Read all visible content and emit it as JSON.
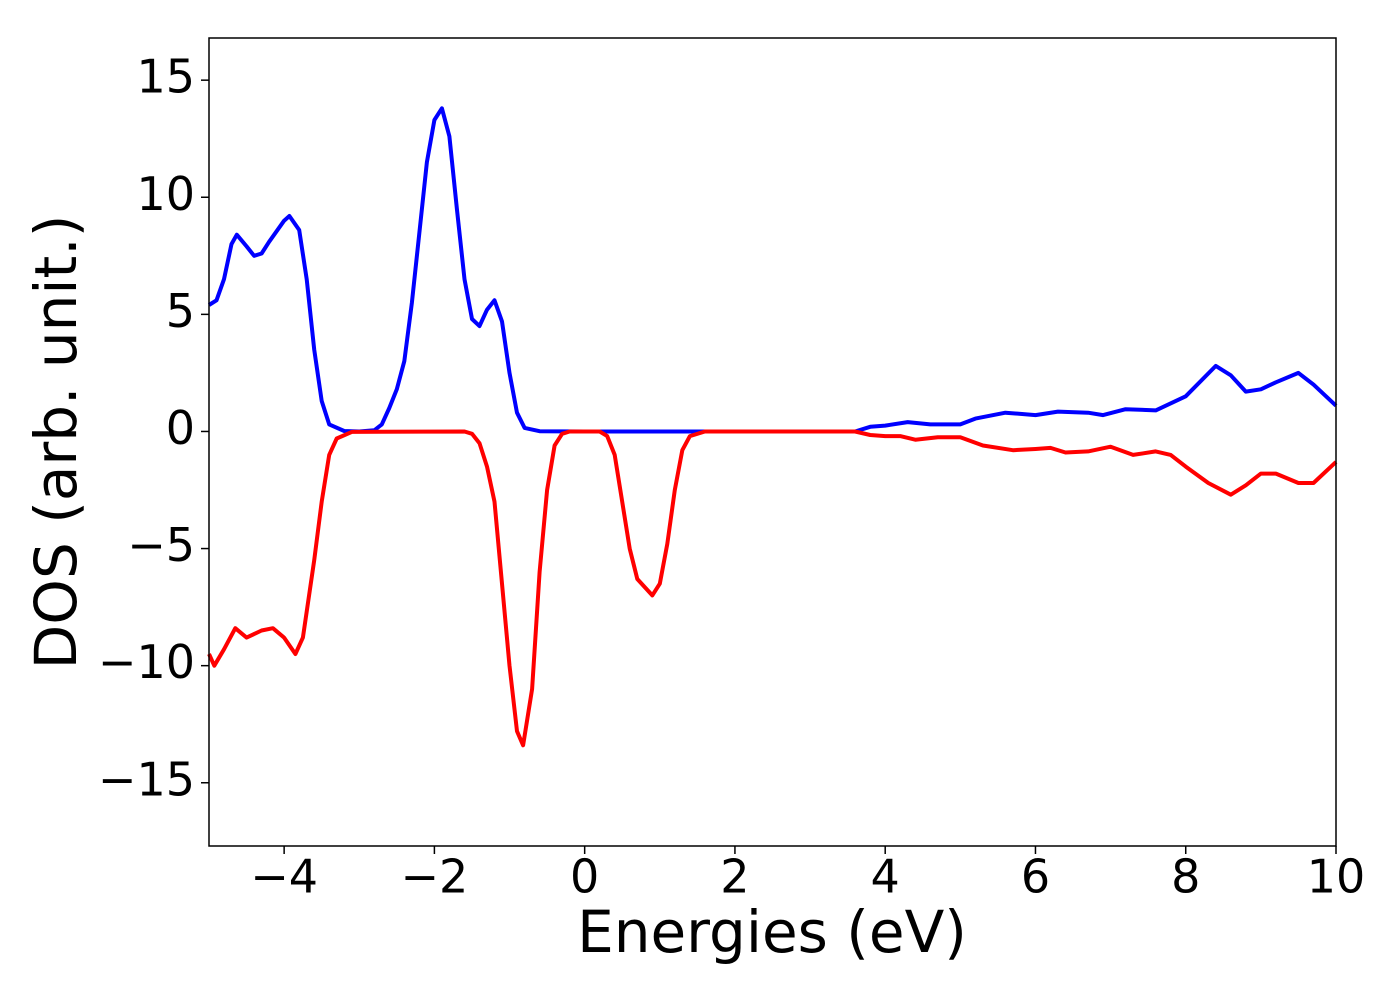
{
  "chart_data": {
    "type": "line",
    "xlabel": "Energies (eV)",
    "ylabel": "DOS (arb. unit.)",
    "xlim": [
      -5,
      10
    ],
    "ylim": [
      -17.7,
      16.8
    ],
    "xticks": [
      {
        "value": -4,
        "label": "−4"
      },
      {
        "value": -2,
        "label": "−2"
      },
      0,
      2,
      4,
      6,
      8,
      10
    ],
    "yticks": [
      {
        "value": -15,
        "label": "−15"
      },
      {
        "value": -10,
        "label": "−10"
      },
      {
        "value": -5,
        "label": "−5"
      },
      0,
      5,
      10,
      15
    ],
    "series": [
      {
        "color": "#0000ff",
        "x": [
          -5,
          -4.9,
          -4.8,
          -4.7,
          -4.63,
          -4.5,
          -4.4,
          -4.3,
          -4.2,
          -4.0,
          -3.93,
          -3.8,
          -3.7,
          -3.6,
          -3.5,
          -3.4,
          -3.2,
          -3.0,
          -2.8,
          -2.7,
          -2.6,
          -2.5,
          -2.4,
          -2.3,
          -2.2,
          -2.1,
          -2.0,
          -1.9,
          -1.8,
          -1.7,
          -1.6,
          -1.5,
          -1.4,
          -1.3,
          -1.2,
          -1.1,
          -1.0,
          -0.9,
          -0.8,
          -0.6,
          0,
          3.6,
          3.8,
          4.0,
          4.3,
          4.6,
          5.0,
          5.2,
          5.6,
          6.0,
          6.3,
          6.7,
          6.9,
          7.2,
          7.6,
          8.0,
          8.4,
          8.6,
          8.8,
          9.0,
          9.2,
          9.5,
          9.7,
          10
        ],
        "values": [
          5.4,
          5.6,
          6.5,
          8.0,
          8.4,
          7.9,
          7.5,
          7.6,
          8.1,
          9.0,
          9.2,
          8.6,
          6.5,
          3.5,
          1.3,
          0.3,
          0.02,
          0,
          0.05,
          0.3,
          1.0,
          1.8,
          3.0,
          5.5,
          8.5,
          11.5,
          13.3,
          13.8,
          12.6,
          9.5,
          6.5,
          4.8,
          4.5,
          5.2,
          5.6,
          4.7,
          2.5,
          0.8,
          0.15,
          0.01,
          0,
          0,
          0.2,
          0.25,
          0.4,
          0.3,
          0.3,
          0.55,
          0.8,
          0.7,
          0.85,
          0.8,
          0.7,
          0.95,
          0.9,
          1.5,
          2.8,
          2.4,
          1.7,
          1.8,
          2.1,
          2.5,
          2.0,
          1.1
        ]
      },
      {
        "color": "#ff0000",
        "x": [
          -5,
          -4.93,
          -4.8,
          -4.65,
          -4.5,
          -4.3,
          -4.15,
          -4.0,
          -3.85,
          -3.75,
          -3.6,
          -3.5,
          -3.4,
          -3.3,
          -3.1,
          -1.6,
          -1.5,
          -1.4,
          -1.3,
          -1.2,
          -1.1,
          -1.0,
          -0.9,
          -0.82,
          -0.7,
          -0.6,
          -0.5,
          -0.4,
          -0.3,
          -0.2,
          0.2,
          0.3,
          0.4,
          0.5,
          0.6,
          0.7,
          0.9,
          1.0,
          1.1,
          1.2,
          1.3,
          1.4,
          1.6,
          3.6,
          3.8,
          4.0,
          4.2,
          4.4,
          4.7,
          5.0,
          5.3,
          5.7,
          6.0,
          6.2,
          6.4,
          6.7,
          7.0,
          7.3,
          7.6,
          7.8,
          8.0,
          8.3,
          8.6,
          8.8,
          9.0,
          9.2,
          9.5,
          9.7,
          10
        ],
        "values": [
          -9.5,
          -10.0,
          -9.3,
          -8.4,
          -8.8,
          -8.5,
          -8.4,
          -8.8,
          -9.5,
          -8.8,
          -5.5,
          -3.0,
          -1.0,
          -0.3,
          -0.02,
          0,
          -0.1,
          -0.5,
          -1.5,
          -3.0,
          -6.5,
          -10,
          -12.8,
          -13.4,
          -11,
          -6,
          -2.5,
          -0.6,
          -0.1,
          0,
          0,
          -0.2,
          -1.0,
          -3,
          -5,
          -6.3,
          -7.0,
          -6.5,
          -4.8,
          -2.5,
          -0.8,
          -0.2,
          0,
          0,
          -0.15,
          -0.2,
          -0.2,
          -0.35,
          -0.25,
          -0.25,
          -0.6,
          -0.8,
          -0.75,
          -0.7,
          -0.9,
          -0.85,
          -0.65,
          -1.0,
          -0.85,
          -1.0,
          -1.5,
          -2.2,
          -2.7,
          -2.3,
          -1.8,
          -1.8,
          -2.2,
          -2.2,
          -1.3
        ]
      }
    ]
  }
}
